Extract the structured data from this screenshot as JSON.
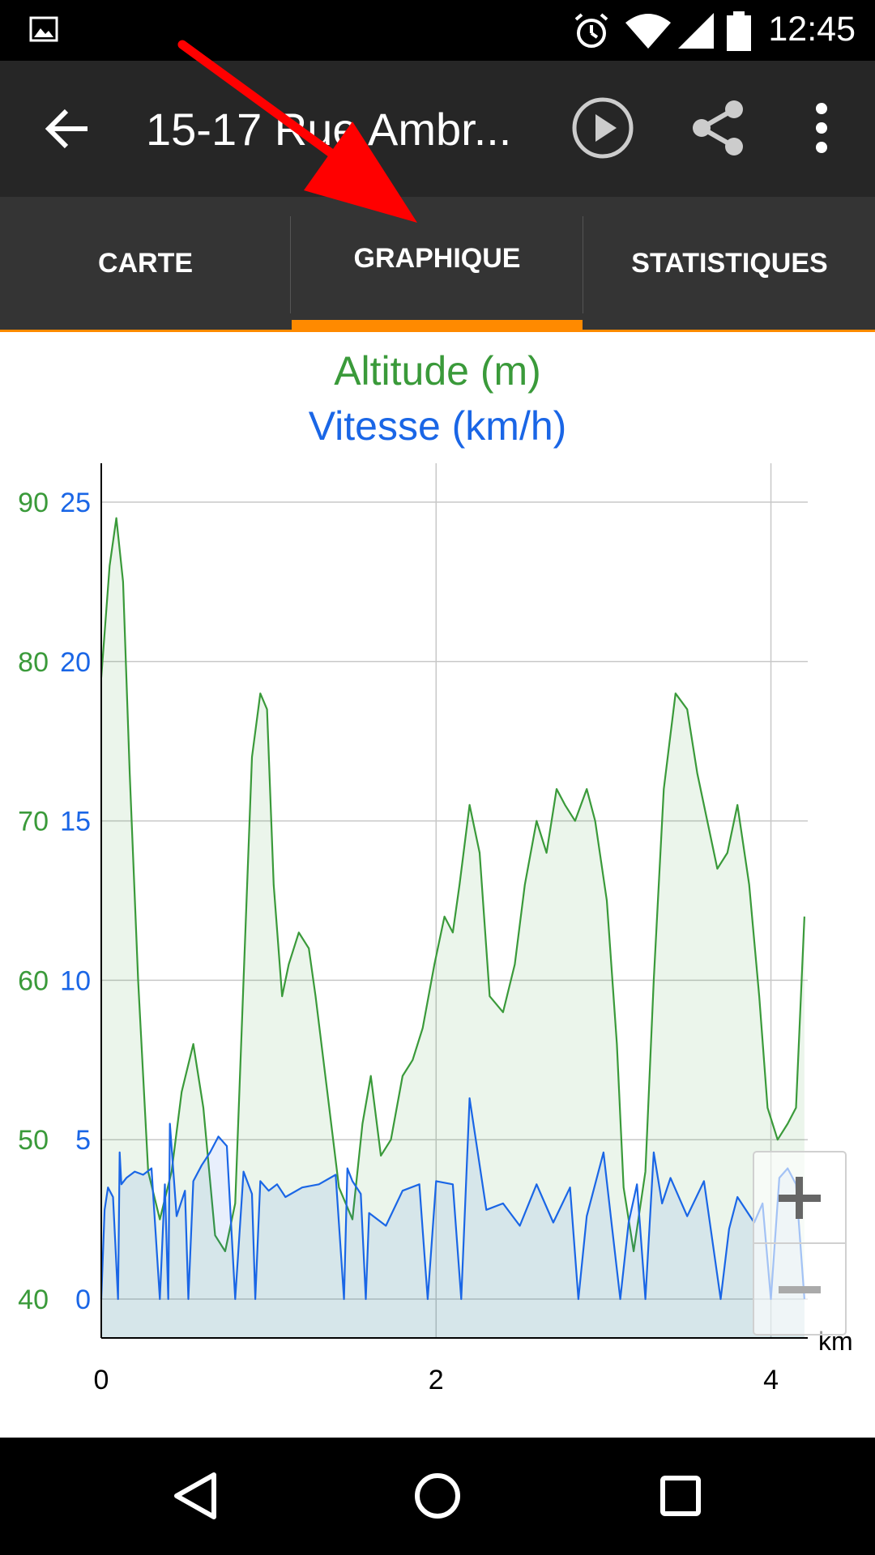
{
  "status": {
    "time": "12:45",
    "icons": [
      "image-icon",
      "alarm-icon",
      "wifi-icon",
      "signal-icon",
      "battery-icon"
    ]
  },
  "appbar": {
    "title": "15-17 Rue Ambr...",
    "icons": [
      "back-arrow-icon",
      "play-icon",
      "share-icon",
      "more-vert-icon"
    ]
  },
  "tabs": [
    {
      "label": "CARTE",
      "selected": false
    },
    {
      "label": "GRAPHIQUE",
      "selected": true
    },
    {
      "label": "STATISTIQUES",
      "selected": false
    }
  ],
  "colors": {
    "accent": "#ff8a00",
    "altitude": "#3a9a3a",
    "speed": "#1a66e6",
    "appbar": "#262626",
    "tabs": "#343434"
  },
  "chart_data": {
    "type": "line",
    "title_altitude": "Altitude (m)",
    "title_speed": "Vitesse (km/h)",
    "xunit": "km",
    "x_ticks": [
      "0",
      "2",
      "4"
    ],
    "altitude_ticks": [
      "90",
      "80",
      "70",
      "60",
      "50",
      "40"
    ],
    "speed_ticks": [
      "25",
      "20",
      "15",
      "10",
      "5",
      "0"
    ],
    "xlim": [
      0,
      4.22
    ],
    "altitude_lim": [
      40,
      90
    ],
    "speed_lim": [
      0,
      25
    ],
    "grid": true,
    "series": [
      {
        "name": "Altitude (m)",
        "axis": "altitude",
        "x": [
          0,
          0.05,
          0.09,
          0.13,
          0.17,
          0.22,
          0.28,
          0.35,
          0.42,
          0.48,
          0.55,
          0.61,
          0.68,
          0.74,
          0.8,
          0.85,
          0.9,
          0.95,
          0.99,
          1.03,
          1.08,
          1.12,
          1.18,
          1.24,
          1.28,
          1.35,
          1.42,
          1.5,
          1.56,
          1.61,
          1.67,
          1.73,
          1.8,
          1.86,
          1.92,
          1.99,
          2.05,
          2.1,
          2.14,
          2.2,
          2.26,
          2.32,
          2.4,
          2.47,
          2.53,
          2.6,
          2.66,
          2.72,
          2.77,
          2.83,
          2.9,
          2.95,
          3.02,
          3.08,
          3.12,
          3.18,
          3.25,
          3.3,
          3.36,
          3.43,
          3.5,
          3.56,
          3.62,
          3.68,
          3.74,
          3.8,
          3.87,
          3.93,
          3.98,
          4.04,
          4.1,
          4.15,
          4.2
        ],
        "values": [
          79,
          86,
          89,
          85,
          73,
          60,
          48,
          45,
          48,
          53,
          56,
          52,
          44,
          43,
          46,
          60,
          74,
          78,
          77,
          66,
          59,
          61,
          63,
          62,
          59,
          53,
          47,
          45,
          51,
          54,
          49,
          50,
          54,
          55,
          57,
          61,
          64,
          63,
          66,
          71,
          68,
          59,
          58,
          61,
          66,
          70,
          68,
          72,
          71,
          70,
          72,
          70,
          65,
          56,
          47,
          43,
          48,
          60,
          72,
          78,
          77,
          73,
          70,
          67,
          68,
          71,
          66,
          59,
          52,
          50,
          51,
          52,
          64
        ]
      },
      {
        "name": "Vitesse (km/h)",
        "axis": "speed",
        "x": [
          0,
          0.02,
          0.04,
          0.07,
          0.1,
          0.11,
          0.12,
          0.15,
          0.2,
          0.25,
          0.3,
          0.35,
          0.38,
          0.4,
          0.41,
          0.45,
          0.5,
          0.52,
          0.55,
          0.6,
          0.65,
          0.7,
          0.75,
          0.8,
          0.85,
          0.9,
          0.92,
          0.95,
          1.0,
          1.05,
          1.1,
          1.2,
          1.3,
          1.4,
          1.45,
          1.47,
          1.5,
          1.55,
          1.58,
          1.6,
          1.7,
          1.8,
          1.9,
          1.95,
          2.0,
          2.1,
          2.15,
          2.2,
          2.3,
          2.4,
          2.5,
          2.6,
          2.7,
          2.8,
          2.85,
          2.9,
          3.0,
          3.05,
          3.1,
          3.15,
          3.2,
          3.25,
          3.3,
          3.35,
          3.4,
          3.5,
          3.6,
          3.7,
          3.75,
          3.8,
          3.9,
          3.95,
          4.0,
          4.05,
          4.1,
          4.15,
          4.2
        ],
        "values": [
          0,
          2.8,
          3.5,
          3.2,
          0,
          4.6,
          3.6,
          3.8,
          4.0,
          3.9,
          4.1,
          0,
          3.6,
          0,
          5.5,
          2.6,
          3.4,
          0,
          3.7,
          4.2,
          4.6,
          5.1,
          4.8,
          0,
          4.0,
          3.3,
          0,
          3.7,
          3.4,
          3.6,
          3.2,
          3.5,
          3.6,
          3.9,
          0,
          4.1,
          3.7,
          3.3,
          0,
          2.7,
          2.3,
          3.4,
          3.6,
          0,
          3.7,
          3.6,
          0,
          6.3,
          2.8,
          3.0,
          2.3,
          3.6,
          2.4,
          3.5,
          0,
          2.6,
          4.6,
          2.3,
          0,
          2.4,
          3.6,
          0,
          4.6,
          3.0,
          3.8,
          2.6,
          3.7,
          0,
          2.2,
          3.2,
          2.4,
          3.0,
          0,
          3.8,
          4.1,
          3.6,
          0
        ]
      }
    ]
  }
}
